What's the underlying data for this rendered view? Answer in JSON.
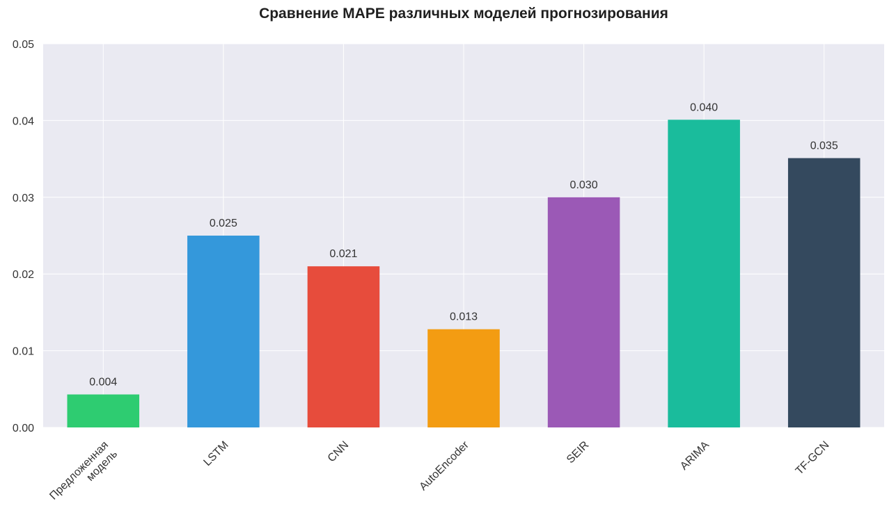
{
  "chart_data": {
    "type": "bar",
    "title": "Сравнение MAPE различных моделей прогнозирования",
    "xlabel": "",
    "ylabel": "",
    "categories": [
      "Предложенная\nмодель",
      "LSTM",
      "CNN",
      "AutoEncoder",
      "SEIR",
      "ARIMA",
      "TF-GCN"
    ],
    "values": [
      0.0043,
      0.025,
      0.021,
      0.0128,
      0.03,
      0.0401,
      0.0351
    ],
    "value_labels": [
      "0.004",
      "0.025",
      "0.021",
      "0.013",
      "0.030",
      "0.040",
      "0.035"
    ],
    "colors": [
      "#2ecc71",
      "#3498db",
      "#e74c3c",
      "#f39c12",
      "#9b59b6",
      "#1abc9c",
      "#34495e"
    ],
    "ylim": [
      0,
      0.05
    ],
    "yticks": [
      0.0,
      0.01,
      0.02,
      0.03,
      0.04,
      0.05
    ],
    "ytick_labels": [
      "0.00",
      "0.01",
      "0.02",
      "0.03",
      "0.04",
      "0.05"
    ],
    "grid": true,
    "background": "#eaeaf2",
    "legend": "none"
  }
}
